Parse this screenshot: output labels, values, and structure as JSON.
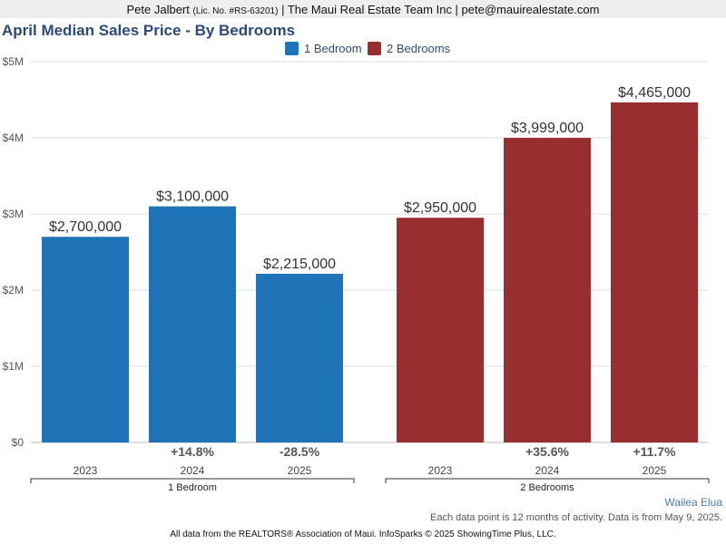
{
  "header": {
    "agent_name": "Pete Jalbert",
    "license": "(Lic. No. #RS-63201)",
    "rest": "| The Maui Real Estate Team Inc | pete@mauirealestate.com"
  },
  "chart_data": {
    "type": "bar",
    "title": "April Median Sales Price - By Bedrooms",
    "ylim": [
      0,
      5000000
    ],
    "yticks": [
      "$0",
      "$1M",
      "$2M",
      "$3M",
      "$4M",
      "$5M"
    ],
    "legend": "top-center",
    "grid": true,
    "groups": [
      {
        "name": "1 Bedroom",
        "color": "#1f73b7",
        "categories": [
          "2023",
          "2024",
          "2025"
        ],
        "values": [
          2700000,
          3100000,
          2215000
        ],
        "value_labels": [
          "$2,700,000",
          "$3,100,000",
          "$2,215,000"
        ],
        "changes": [
          "",
          "+14.8%",
          "-28.5%"
        ]
      },
      {
        "name": "2 Bedrooms",
        "color": "#992e2e",
        "categories": [
          "2023",
          "2024",
          "2025"
        ],
        "values": [
          2950000,
          3999000,
          4465000
        ],
        "value_labels": [
          "$2,950,000",
          "$3,999,000",
          "$4,465,000"
        ],
        "changes": [
          "",
          "+35.6%",
          "+11.7%"
        ]
      }
    ]
  },
  "footer": {
    "area": "Wailea Elua",
    "note": "Each data point is 12 months of activity. Data is from May 9, 2025.",
    "source": "All data from the REALTORS® Association of Maui. InfoSparks © 2025 ShowingTime Plus, LLC."
  }
}
